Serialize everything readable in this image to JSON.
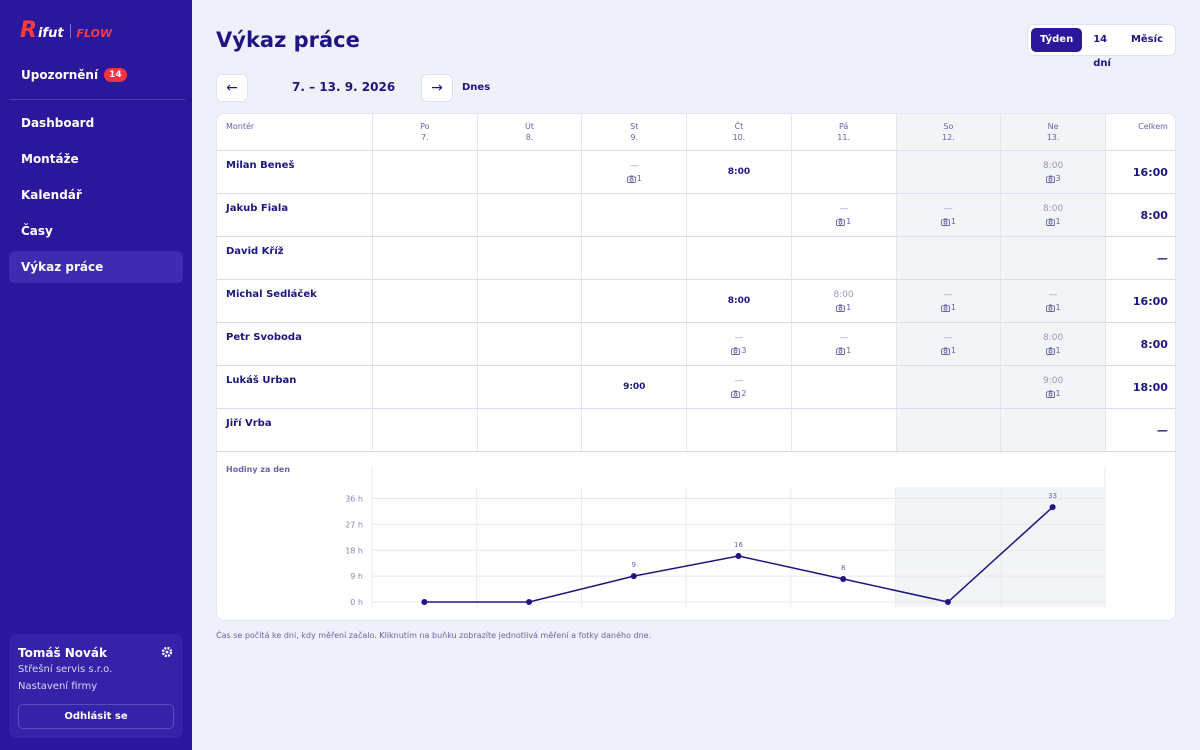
{
  "logo": {
    "mark": "R",
    "word": "ifut",
    "product": "FLOW"
  },
  "sidebar": {
    "notifications": {
      "label": "Upozornění",
      "count": 14
    },
    "nav": [
      "Dashboard",
      "Montáže",
      "Kalendář",
      "Časy",
      "Výkaz práce"
    ],
    "active": 4,
    "user": {
      "name": "Tomáš Novák",
      "company": "Střešní servis s.r.o.",
      "settings": "Nastavení firmy",
      "logout": "Odhlásit se"
    }
  },
  "header": {
    "title": "Výkaz práce",
    "ranges": [
      "Týden",
      "14 dní",
      "Měsíc"
    ],
    "active_range": 0,
    "prev": "←",
    "period": "7. – 13. 9. 2026",
    "next": "→",
    "today": "Dnes"
  },
  "table": {
    "worker_header": "Montér",
    "total_header": "Celkem",
    "days": [
      {
        "name": "Po",
        "date": "7.",
        "weekend": false
      },
      {
        "name": "Út",
        "date": "8.",
        "weekend": false
      },
      {
        "name": "St",
        "date": "9.",
        "weekend": false
      },
      {
        "name": "Čt",
        "date": "10.",
        "weekend": false
      },
      {
        "name": "Pá",
        "date": "11.",
        "weekend": false
      },
      {
        "name": "So",
        "date": "12.",
        "weekend": true
      },
      {
        "name": "Ne",
        "date": "13.",
        "weekend": true
      }
    ],
    "rows": [
      {
        "name": "Milan Beneš",
        "cells": [
          null,
          null,
          {
            "hours": "—",
            "photos": 1
          },
          {
            "hours": "8:00"
          },
          null,
          null,
          {
            "hours": "8:00",
            "photos": 3
          }
        ],
        "total": "16:00"
      },
      {
        "name": "Jakub Fiala",
        "cells": [
          null,
          null,
          null,
          null,
          {
            "hours": "—",
            "photos": 1
          },
          {
            "hours": "—",
            "photos": 1
          },
          {
            "hours": "8:00",
            "photos": 1
          }
        ],
        "total": "8:00"
      },
      {
        "name": "David Kříž",
        "cells": [
          null,
          null,
          null,
          null,
          null,
          null,
          null
        ],
        "total": "—"
      },
      {
        "name": "Michal Sedláček",
        "cells": [
          null,
          null,
          null,
          {
            "hours": "8:00"
          },
          {
            "hours": "8:00",
            "photos": 1
          },
          {
            "hours": "—",
            "photos": 1
          },
          {
            "hours": "—",
            "photos": 1
          }
        ],
        "total": "16:00"
      },
      {
        "name": "Petr Svoboda",
        "cells": [
          null,
          null,
          null,
          {
            "hours": "—",
            "photos": 3
          },
          {
            "hours": "—",
            "photos": 1
          },
          {
            "hours": "—",
            "photos": 1
          },
          {
            "hours": "8:00",
            "photos": 1
          }
        ],
        "total": "8:00"
      },
      {
        "name": "Lukáš Urban",
        "cells": [
          null,
          null,
          {
            "hours": "9:00"
          },
          {
            "hours": "—",
            "photos": 2
          },
          null,
          null,
          {
            "hours": "9:00",
            "photos": 1
          }
        ],
        "total": "18:00"
      },
      {
        "name": "Jiří Vrba",
        "cells": [
          null,
          null,
          null,
          null,
          null,
          null,
          null
        ],
        "total": "—"
      }
    ]
  },
  "chart_data": {
    "type": "line",
    "title": "Hodiny za den",
    "values": [
      0,
      0,
      9,
      16,
      8,
      0,
      33
    ],
    "color": "#1f1580",
    "ylim": [
      0,
      40
    ],
    "yticks": [
      {
        "value": 0,
        "label": "0 h"
      },
      {
        "value": 9,
        "label": "9 h"
      },
      {
        "value": 18,
        "label": "18 h"
      },
      {
        "value": 27,
        "label": "27 h"
      },
      {
        "value": 36,
        "label": "36 h"
      }
    ],
    "grid": true
  },
  "footnote": "Čas se počítá ke dni, kdy měření začalo. Kliknutím na buňku zobrazíte jednotlivá měření a fotky daného dne."
}
